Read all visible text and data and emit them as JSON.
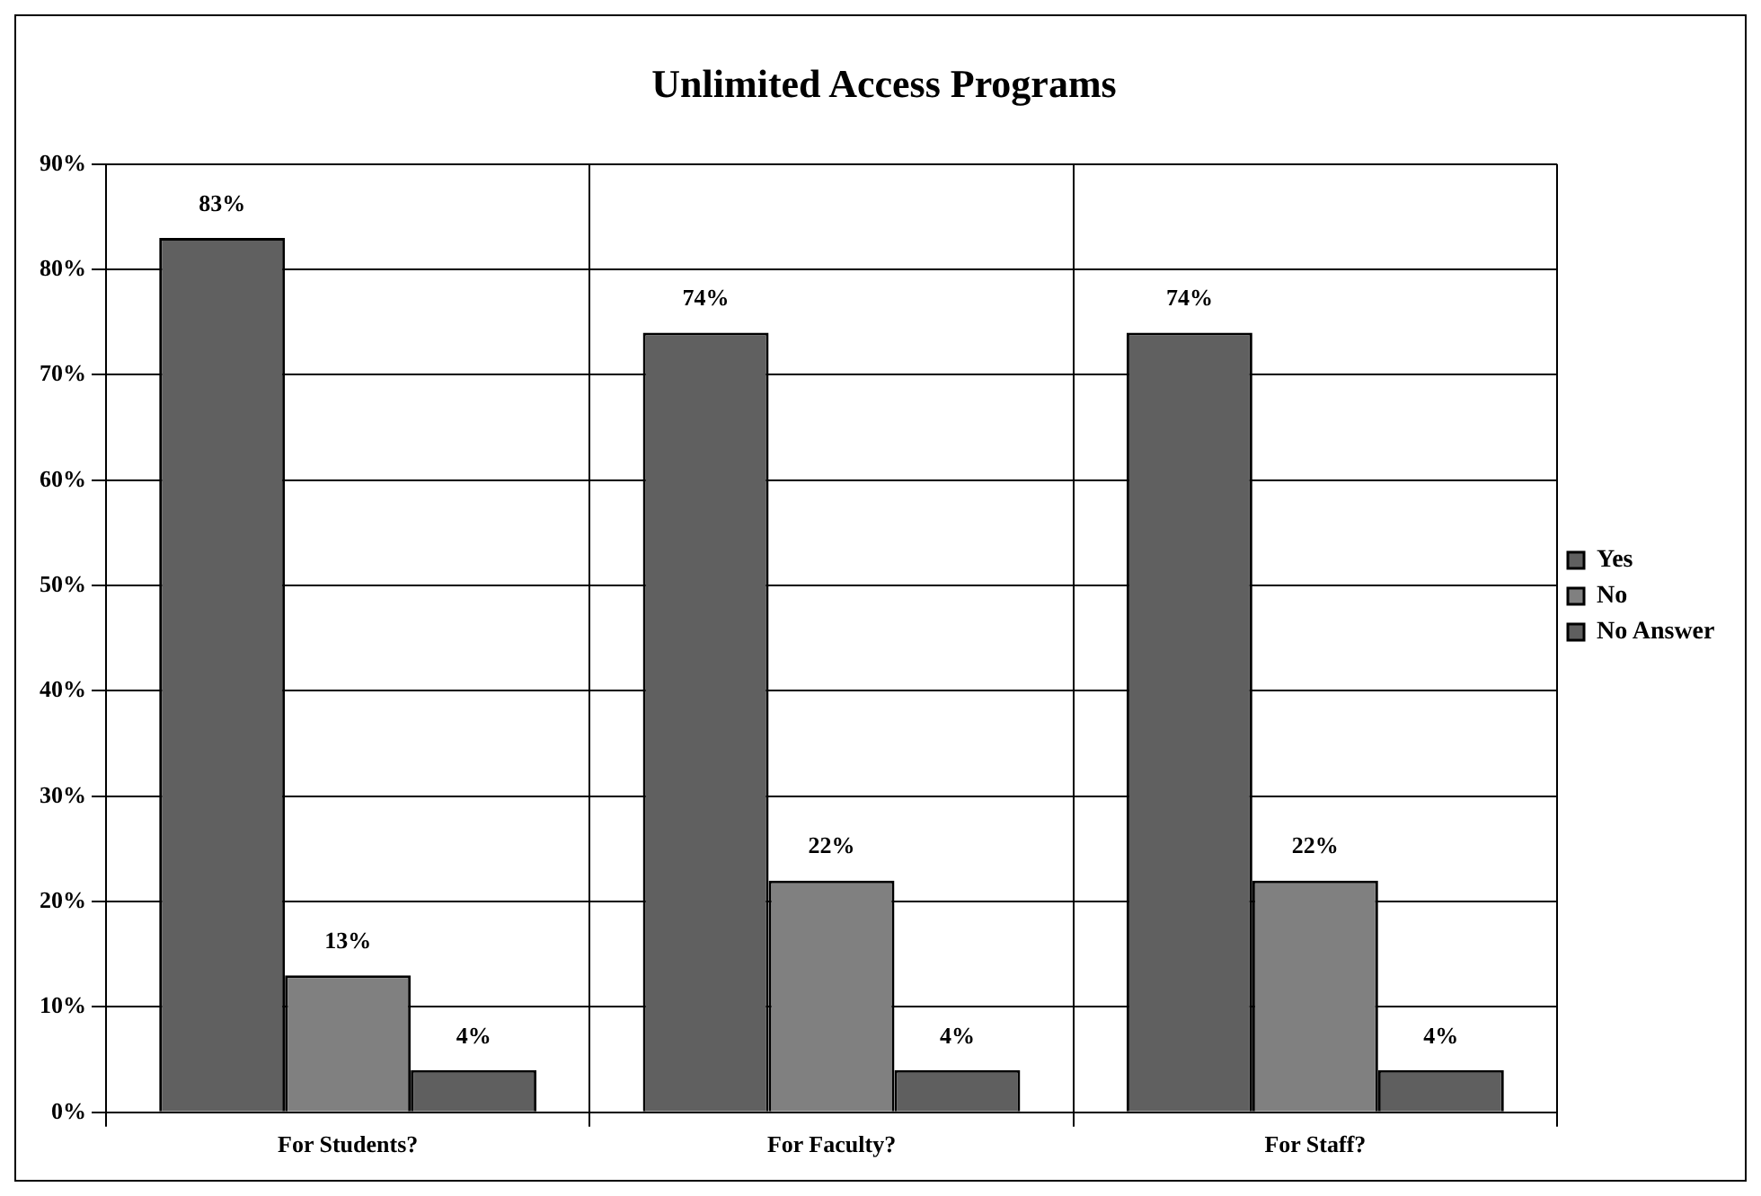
{
  "chart_data": {
    "type": "bar",
    "title": "Unlimited Access Programs",
    "categories": [
      "For Students?",
      "For Faculty?",
      "For Staff?"
    ],
    "series": [
      {
        "name": "Yes",
        "color": "#606060",
        "values": [
          83,
          74,
          74
        ],
        "value_labels": [
          "83%",
          "74%",
          "74%"
        ]
      },
      {
        "name": "No",
        "color": "#808080",
        "values": [
          13,
          22,
          22
        ],
        "value_labels": [
          "13%",
          "22%",
          "22%"
        ]
      },
      {
        "name": "No Answer",
        "color": "#5f5f5f",
        "values": [
          4,
          4,
          4
        ],
        "value_labels": [
          "4%",
          "4%",
          "4%"
        ]
      }
    ],
    "ylim": [
      0,
      90
    ],
    "yticks": [
      {
        "value": 0,
        "label": "0%"
      },
      {
        "value": 10,
        "label": "10%"
      },
      {
        "value": 20,
        "label": "20%"
      },
      {
        "value": 30,
        "label": "30%"
      },
      {
        "value": 40,
        "label": "40%"
      },
      {
        "value": 50,
        "label": "50%"
      },
      {
        "value": 60,
        "label": "60%"
      },
      {
        "value": 70,
        "label": "70%"
      },
      {
        "value": 80,
        "label": "80%"
      },
      {
        "value": 90,
        "label": "90%"
      }
    ],
    "grid": true,
    "legend": "right"
  }
}
